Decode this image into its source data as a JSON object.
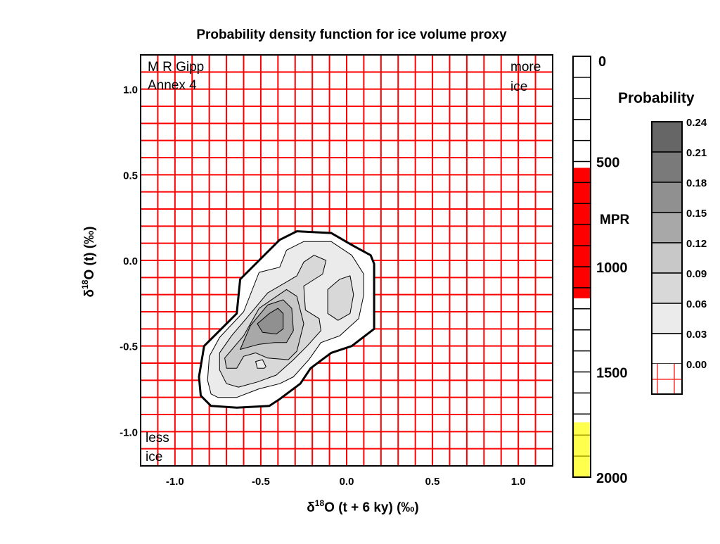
{
  "chart_data": {
    "type": "contour",
    "title": "Probability density function for ice volume proxy",
    "xlabel": "δ18O (t + 6 ky) (‰)",
    "ylabel": "δ18O (t) (‰)",
    "xlim": [
      -1.2,
      1.2
    ],
    "ylim": [
      -1.2,
      1.2
    ],
    "grid": true,
    "grid_step": 0.1,
    "grid_color": "#ff0000",
    "xticks": [
      "-1.0",
      "-0.5",
      "0.0",
      "0.5",
      "1.0"
    ],
    "xtick_values": [
      -1.0,
      -0.5,
      0.0,
      0.5,
      1.0
    ],
    "yticks": [
      "1.0",
      "0.5",
      "0.0",
      "-0.5",
      "-1.0"
    ],
    "ytick_values": [
      1.0,
      0.5,
      0.0,
      -0.5,
      -1.0
    ],
    "annotations": {
      "author_line1": "M R Gipp",
      "author_line2": "Annex 4",
      "more_ice_1": "more",
      "more_ice_2": "ice",
      "less_ice_1": "less",
      "less_ice_2": "ice"
    },
    "contours": [
      {
        "level": 0.0,
        "fill": "#ffffff",
        "thick": true,
        "points": [
          [
            -0.79,
            -0.85
          ],
          [
            -0.85,
            -0.79
          ],
          [
            -0.86,
            -0.68
          ],
          [
            -0.83,
            -0.5
          ],
          [
            -0.64,
            -0.31
          ],
          [
            -0.62,
            -0.11
          ],
          [
            -0.39,
            0.12
          ],
          [
            -0.29,
            0.17
          ],
          [
            -0.09,
            0.16
          ],
          [
            0.03,
            0.09
          ],
          [
            0.14,
            0.03
          ],
          [
            0.16,
            -0.02
          ],
          [
            0.16,
            -0.4
          ],
          [
            0.03,
            -0.5
          ],
          [
            -0.09,
            -0.54
          ],
          [
            -0.21,
            -0.63
          ],
          [
            -0.27,
            -0.72
          ],
          [
            -0.39,
            -0.81
          ],
          [
            -0.45,
            -0.85
          ],
          [
            -0.64,
            -0.86
          ]
        ]
      },
      {
        "level": 0.03,
        "fill": "#ebebeb",
        "points": [
          [
            -0.79,
            -0.78
          ],
          [
            -0.81,
            -0.7
          ],
          [
            -0.8,
            -0.56
          ],
          [
            -0.74,
            -0.45
          ],
          [
            -0.6,
            -0.3
          ],
          [
            -0.51,
            -0.07
          ],
          [
            -0.39,
            -0.04
          ],
          [
            -0.35,
            0.06
          ],
          [
            -0.25,
            0.11
          ],
          [
            -0.09,
            0.11
          ],
          [
            0.03,
            0.03
          ],
          [
            0.1,
            -0.08
          ],
          [
            0.1,
            -0.2
          ],
          [
            0.07,
            -0.34
          ],
          [
            -0.04,
            -0.44
          ],
          [
            -0.15,
            -0.48
          ],
          [
            -0.22,
            -0.58
          ],
          [
            -0.31,
            -0.68
          ],
          [
            -0.39,
            -0.72
          ],
          [
            -0.51,
            -0.75
          ],
          [
            -0.64,
            -0.8
          ],
          [
            -0.75,
            -0.8
          ]
        ]
      },
      {
        "level": 0.06,
        "fill": "#d8d8d8",
        "points": [
          [
            -0.7,
            -0.72
          ],
          [
            -0.74,
            -0.64
          ],
          [
            -0.74,
            -0.54
          ],
          [
            -0.67,
            -0.44
          ],
          [
            -0.56,
            -0.31
          ],
          [
            -0.46,
            -0.19
          ],
          [
            -0.34,
            -0.12
          ],
          [
            -0.29,
            -0.09
          ],
          [
            -0.25,
            -0.01
          ],
          [
            -0.19,
            0.03
          ],
          [
            -0.12,
            0.0
          ],
          [
            -0.14,
            -0.08
          ],
          [
            -0.25,
            -0.15
          ],
          [
            -0.24,
            -0.29
          ],
          [
            -0.16,
            -0.34
          ],
          [
            -0.15,
            -0.41
          ],
          [
            -0.23,
            -0.5
          ],
          [
            -0.31,
            -0.58
          ],
          [
            -0.41,
            -0.67
          ],
          [
            -0.52,
            -0.71
          ],
          [
            -0.63,
            -0.74
          ]
        ]
      },
      {
        "level": 0.06,
        "fill": "#d8d8d8",
        "points": [
          [
            -0.11,
            -0.17
          ],
          [
            -0.04,
            -0.11
          ],
          [
            0.02,
            -0.09
          ],
          [
            0.04,
            -0.2
          ],
          [
            0.02,
            -0.31
          ],
          [
            -0.05,
            -0.35
          ],
          [
            -0.11,
            -0.31
          ]
        ]
      },
      {
        "level": 0.06,
        "fill": "#ebebeb",
        "points": [
          [
            -0.53,
            -0.59
          ],
          [
            -0.49,
            -0.58
          ],
          [
            -0.47,
            -0.62
          ],
          [
            -0.48,
            -0.63
          ],
          [
            -0.52,
            -0.63
          ]
        ]
      },
      {
        "level": 0.09,
        "fill": "#c8c8c8",
        "points": [
          [
            -0.7,
            -0.63
          ],
          [
            -0.71,
            -0.57
          ],
          [
            -0.6,
            -0.44
          ],
          [
            -0.51,
            -0.28
          ],
          [
            -0.35,
            -0.17
          ],
          [
            -0.29,
            -0.21
          ],
          [
            -0.25,
            -0.37
          ],
          [
            -0.29,
            -0.53
          ],
          [
            -0.34,
            -0.58
          ],
          [
            -0.46,
            -0.57
          ],
          [
            -0.53,
            -0.54
          ],
          [
            -0.6,
            -0.56
          ],
          [
            -0.64,
            -0.63
          ]
        ]
      },
      {
        "level": 0.12,
        "fill": "#a8a8a8",
        "points": [
          [
            -0.62,
            -0.52
          ],
          [
            -0.56,
            -0.38
          ],
          [
            -0.46,
            -0.26
          ],
          [
            -0.37,
            -0.23
          ],
          [
            -0.32,
            -0.28
          ],
          [
            -0.31,
            -0.41
          ],
          [
            -0.35,
            -0.48
          ],
          [
            -0.42,
            -0.48
          ],
          [
            -0.51,
            -0.49
          ]
        ]
      },
      {
        "level": 0.15,
        "fill": "#909090",
        "points": [
          [
            -0.52,
            -0.37
          ],
          [
            -0.45,
            -0.31
          ],
          [
            -0.4,
            -0.28
          ],
          [
            -0.37,
            -0.31
          ],
          [
            -0.37,
            -0.4
          ],
          [
            -0.41,
            -0.43
          ],
          [
            -0.49,
            -0.42
          ]
        ]
      }
    ],
    "probability_legend": {
      "title": "Probability",
      "levels": [
        "0.24",
        "0.21",
        "0.18",
        "0.15",
        "0.12",
        "0.09",
        "0.06",
        "0.03",
        "0.00"
      ],
      "colors": [
        "#666666",
        "#7a7a7a",
        "#909090",
        "#a8a8a8",
        "#c8c8c8",
        "#d8d8d8",
        "#ebebeb",
        "#ffffff",
        "grid"
      ]
    },
    "mpr_bar": {
      "label": "MPR",
      "range": [
        0,
        2000
      ],
      "tick_step": 100,
      "tick_labels": [
        "0",
        "500",
        "1000",
        "1500",
        "2000"
      ],
      "tick_label_values": [
        0,
        500,
        1000,
        1500,
        2000
      ],
      "bands": [
        {
          "from": 530,
          "to": 1150,
          "color": "#ff0000"
        },
        {
          "from": 1740,
          "to": 2000,
          "color": "#ffff4d"
        }
      ]
    }
  }
}
